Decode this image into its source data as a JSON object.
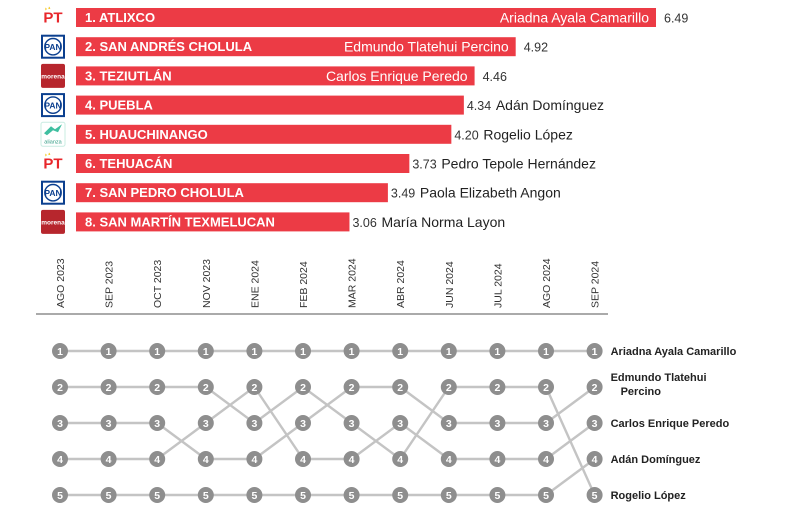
{
  "chart_data": [
    {
      "type": "bar",
      "orientation": "horizontal",
      "title": "",
      "xlabel": "",
      "ylabel": "",
      "xlim": [
        0,
        6.49
      ],
      "categories": [
        "1. ATLIXCO",
        "2. SAN ANDRÉS CHOLULA",
        "3. TEZIUTLÁN",
        "4. PUEBLA",
        "5. HUAUCHINANGO",
        "6. TEHUACÁN",
        "7. SAN PEDRO CHOLULA",
        "8. SAN MARTÍN TEXMELUCAN"
      ],
      "values": [
        6.49,
        4.92,
        4.46,
        4.34,
        4.2,
        3.73,
        3.49,
        3.06
      ],
      "value_labels": [
        "6.49",
        "4.92",
        "4.46",
        "4.34",
        "4.20",
        "3.73",
        "3.49",
        "3.06"
      ],
      "names": [
        "Ariadna Ayala Camarillo",
        "Edmundo Tlatehui Percino",
        "Carlos Enrique Peredo",
        "Adán Domínguez",
        "Rogelio López",
        "Pedro Tepole Hernández",
        "Paola Elizabeth Angon",
        "María Norma Layon"
      ],
      "party_logos": [
        "PT",
        "PAN",
        "morena",
        "PAN",
        "alianza",
        "PT",
        "PAN",
        "morena"
      ],
      "bar_color": "#ec3b45",
      "party_colors": {
        "PT": "#e8262b",
        "PAN": "#0b3f8f",
        "morena": "#b7262d",
        "alianza": "#3fbfa0"
      }
    },
    {
      "type": "line",
      "subtype": "bump",
      "x": [
        "AGO 2023",
        "SEP 2023",
        "OCT 2023",
        "NOV 2023",
        "ENE 2024",
        "FEB 2024",
        "MAR 2024",
        "ABR 2024",
        "JUN 2024",
        "JUL 2024",
        "AGO 2024",
        "SEP 2024"
      ],
      "ylim": [
        1,
        5
      ],
      "y_reversed": true,
      "series": [
        {
          "name": "Ariadna Ayala Camarillo",
          "values": [
            1,
            1,
            1,
            1,
            1,
            1,
            1,
            1,
            1,
            1,
            1,
            1
          ]
        },
        {
          "name": "Edmundo Tlatehui Percino",
          "values": [
            2,
            2,
            2,
            2,
            3,
            2,
            3,
            4,
            2,
            2,
            2,
            5
          ]
        },
        {
          "name": "Carlos Enrique Peredo",
          "values": [
            3,
            3,
            3,
            4,
            4,
            3,
            2,
            2,
            3,
            3,
            3,
            2
          ]
        },
        {
          "name": "Adán Domínguez",
          "values": [
            4,
            4,
            4,
            3,
            2,
            4,
            4,
            3,
            4,
            4,
            4,
            3
          ]
        },
        {
          "name": "Rogelio López",
          "values": [
            5,
            5,
            5,
            5,
            5,
            5,
            5,
            5,
            5,
            5,
            5,
            4
          ]
        }
      ],
      "end_labels": [
        "Ariadna Ayala Camarillo",
        "Edmundo Tlatehui Percino",
        "Carlos Enrique Peredo",
        "Adán Domínguez",
        "Rogelio López"
      ],
      "line_color": "#c4c4c4",
      "node_color": "#8e8e8e",
      "node_text_color": "#ffffff",
      "grid": false
    }
  ]
}
